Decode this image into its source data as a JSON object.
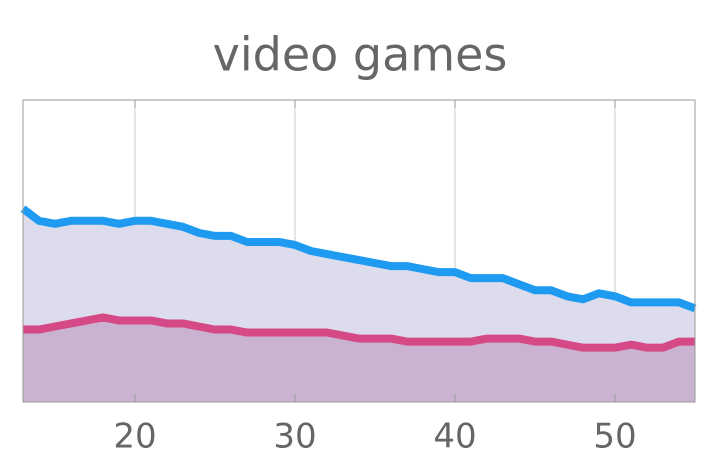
{
  "chart_data": {
    "type": "area",
    "title": "video games",
    "x": [
      13,
      14,
      15,
      16,
      17,
      18,
      19,
      20,
      21,
      22,
      23,
      24,
      25,
      26,
      27,
      28,
      29,
      30,
      31,
      32,
      33,
      34,
      35,
      36,
      37,
      38,
      39,
      40,
      41,
      42,
      43,
      44,
      45,
      46,
      47,
      48,
      49,
      50,
      51,
      52,
      53,
      54,
      55
    ],
    "series": [
      {
        "color": "#1e9bf0",
        "fill": "#dcdcec",
        "values": [
          0.64,
          0.6,
          0.59,
          0.6,
          0.6,
          0.6,
          0.59,
          0.6,
          0.6,
          0.59,
          0.58,
          0.56,
          0.55,
          0.55,
          0.53,
          0.53,
          0.53,
          0.52,
          0.5,
          0.49,
          0.48,
          0.47,
          0.46,
          0.45,
          0.45,
          0.44,
          0.43,
          0.43,
          0.41,
          0.41,
          0.41,
          0.39,
          0.37,
          0.37,
          0.35,
          0.34,
          0.36,
          0.35,
          0.33,
          0.33,
          0.33,
          0.33,
          0.31
        ]
      },
      {
        "color": "#d54a86",
        "fill": "#c9b3d0",
        "values": [
          0.24,
          0.24,
          0.25,
          0.26,
          0.27,
          0.28,
          0.27,
          0.27,
          0.27,
          0.26,
          0.26,
          0.25,
          0.24,
          0.24,
          0.23,
          0.23,
          0.23,
          0.23,
          0.23,
          0.23,
          0.22,
          0.21,
          0.21,
          0.21,
          0.2,
          0.2,
          0.2,
          0.2,
          0.2,
          0.21,
          0.21,
          0.21,
          0.2,
          0.2,
          0.19,
          0.18,
          0.18,
          0.18,
          0.19,
          0.18,
          0.18,
          0.2,
          0.2
        ]
      }
    ],
    "xlim": [
      13,
      55
    ],
    "xticks": [
      20,
      30,
      40,
      50
    ],
    "ylim": [
      0,
      1
    ],
    "grid": true
  }
}
